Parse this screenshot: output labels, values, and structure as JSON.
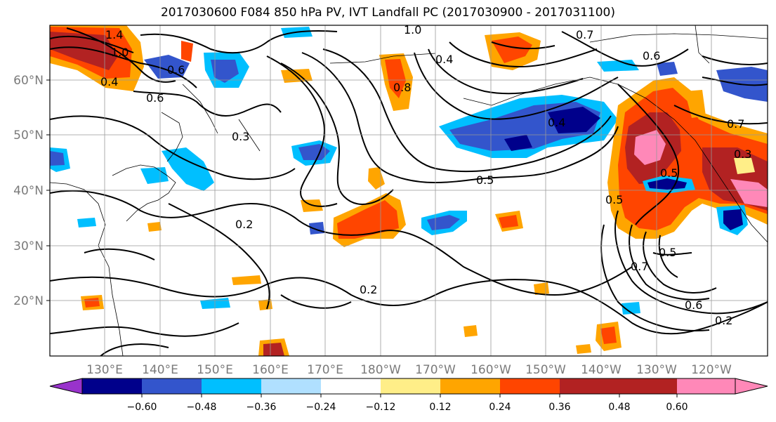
{
  "title": "2017030600 F084 850 hPa PV, IVT Landfall PC (2017030900 - 2017031100)",
  "lat_labels": [
    "60°N",
    "50°N",
    "40°N",
    "30°N",
    "20°N"
  ],
  "lon_labels": [
    "130°E",
    "140°E",
    "150°E",
    "160°E",
    "170°E",
    "180°W",
    "170°W",
    "160°W",
    "150°W",
    "140°W",
    "130°W",
    "120°W"
  ],
  "colorbar": {
    "colors": [
      "#9933cc",
      "#00008b",
      "#3355cc",
      "#00bfff",
      "#b0e0ff",
      "#ffffff",
      "#ffee88",
      "#ffa500",
      "#ff4500",
      "#b22222",
      "#ff88b8"
    ],
    "tick_labels": [
      "−0.60",
      "−0.48",
      "−0.36",
      "−0.24",
      "−0.12",
      "0.12",
      "0.24",
      "0.36",
      "0.48",
      "0.60"
    ]
  },
  "contour_labels": [
    "1.4",
    "1.0",
    "0.6",
    "0.4",
    "0.6",
    "1.0",
    "0.7",
    "0.6",
    "0.4",
    "0.8",
    "0.3",
    "0.5",
    "0.2",
    "0.2",
    "0.5",
    "0.4",
    "0.5",
    "0.7",
    "0.5",
    "0.6",
    "0.2",
    "0.3",
    "0.7"
  ]
}
